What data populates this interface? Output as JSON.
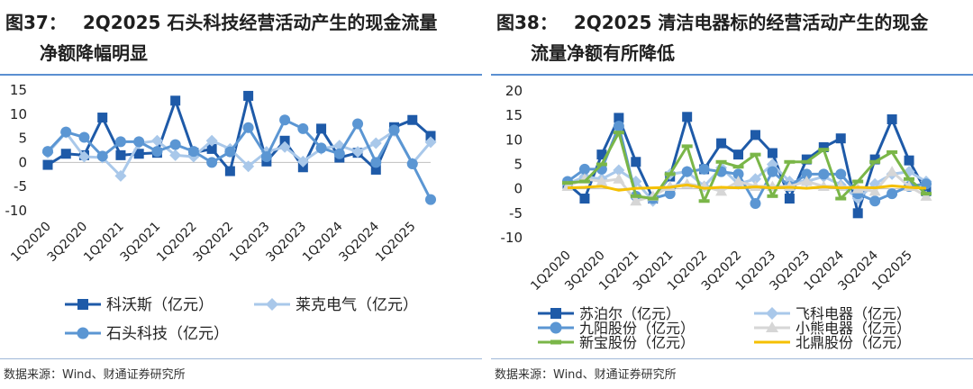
{
  "left": {
    "title_fig": "图37：",
    "title_line1": "2Q2025 石头科技经营活动产生的现金流量",
    "title_line2": "净额降幅明显",
    "source": "数据来源：Wind、财通证券研究所",
    "chart_data": {
      "type": "line",
      "categories": [
        "1Q2020",
        "2Q2020",
        "3Q2020",
        "4Q2020",
        "1Q2021",
        "2Q2021",
        "3Q2021",
        "4Q2021",
        "1Q2022",
        "2Q2022",
        "3Q2022",
        "4Q2022",
        "1Q2023",
        "2Q2023",
        "3Q2023",
        "4Q2023",
        "1Q2024",
        "2Q2024",
        "3Q2024",
        "4Q2024",
        "1Q2025",
        "2Q2025"
      ],
      "tick_labels": [
        "1Q2020",
        "3Q2020",
        "1Q2021",
        "3Q2021",
        "1Q2022",
        "3Q2022",
        "1Q2023",
        "3Q2023",
        "1Q2024",
        "3Q2024",
        "1Q2025"
      ],
      "y_ticks": [
        "15",
        "10",
        "5",
        "0",
        "-5",
        "-10"
      ],
      "ylim": [
        -10,
        15
      ],
      "series": [
        {
          "name": "科沃斯（亿元）",
          "color": "#1e5aa8",
          "marker": "square",
          "values": [
            -0.5,
            1.8,
            1.5,
            9.3,
            1.5,
            1.8,
            2.0,
            12.8,
            2.0,
            2.8,
            -1.8,
            13.8,
            0.2,
            4.5,
            -1.0,
            7.0,
            1.0,
            2.0,
            -1.5,
            7.3,
            8.8,
            5.5
          ]
        },
        {
          "name": "莱克电气（亿元）",
          "color": "#a9c8ea",
          "marker": "diamond",
          "values": [
            2.0,
            6.2,
            1.2,
            1.0,
            -2.8,
            4.0,
            4.5,
            1.5,
            1.2,
            4.5,
            2.8,
            -0.8,
            2.2,
            3.2,
            0.2,
            2.8,
            3.5,
            2.2,
            4.0,
            6.5,
            -0.2,
            4.2
          ]
        },
        {
          "name": "石头科技（亿元）",
          "color": "#5b96d3",
          "marker": "circle",
          "values": [
            2.3,
            6.3,
            5.2,
            1.3,
            4.3,
            4.3,
            2.3,
            3.7,
            2.3,
            0.0,
            2.2,
            7.2,
            1.2,
            8.8,
            7.0,
            3.0,
            1.8,
            8.0,
            0.0,
            6.7,
            -0.3,
            -7.7
          ]
        }
      ]
    }
  },
  "right": {
    "title_fig": "图38：",
    "title_line1": "2Q2025 清洁电器标的经营活动产生的现金",
    "title_line2": "流量净额有所降低",
    "source": "数据来源：Wind、财通证券研究所",
    "chart_data": {
      "type": "line",
      "categories": [
        "1Q2020",
        "2Q2020",
        "3Q2020",
        "4Q2020",
        "1Q2021",
        "2Q2021",
        "3Q2021",
        "4Q2021",
        "1Q2022",
        "2Q2022",
        "3Q2022",
        "4Q2022",
        "1Q2023",
        "2Q2023",
        "3Q2023",
        "4Q2023",
        "1Q2024",
        "2Q2024",
        "3Q2024",
        "4Q2024",
        "1Q2025",
        "2Q2025"
      ],
      "tick_labels": [
        "1Q2020",
        "3Q2020",
        "1Q2021",
        "3Q2021",
        "1Q2022",
        "3Q2022",
        "1Q2023",
        "3Q2023",
        "1Q2024",
        "3Q2024",
        "1Q2025"
      ],
      "y_ticks": [
        "20",
        "15",
        "10",
        "5",
        "0",
        "-5",
        "-10"
      ],
      "ylim": [
        -10,
        20
      ],
      "series": [
        {
          "name": "苏泊尔（亿元）",
          "color": "#1e5aa8",
          "marker": "square",
          "values": [
            1.0,
            -2.0,
            7.0,
            14.5,
            5.5,
            -2.0,
            2.5,
            14.7,
            4.0,
            9.3,
            7.0,
            11.0,
            7.3,
            -2.0,
            6.0,
            8.5,
            10.3,
            -5.0,
            6.0,
            14.2,
            5.8,
            -0.5
          ]
        },
        {
          "name": "飞科电器（亿元）",
          "color": "#a9c8ea",
          "marker": "diamond",
          "values": [
            1.0,
            2.5,
            2.0,
            3.8,
            1.5,
            -2.5,
            3.0,
            3.5,
            0.5,
            4.3,
            1.0,
            2.0,
            5.0,
            1.5,
            1.5,
            2.5,
            0.8,
            -2.0,
            1.0,
            3.0,
            3.5,
            1.5
          ]
        },
        {
          "name": "九阳股份（亿元）",
          "color": "#5b96d3",
          "marker": "circle",
          "values": [
            1.5,
            4.0,
            4.0,
            12.8,
            -1.5,
            -2.0,
            -1.0,
            3.5,
            4.0,
            3.5,
            3.0,
            -3.0,
            3.5,
            0.5,
            3.0,
            3.0,
            3.0,
            -1.0,
            -2.5,
            -1.0,
            0.5,
            1.0
          ]
        },
        {
          "name": "小熊电器（亿元）",
          "color": "#d6d6d6",
          "marker": "triangle",
          "values": [
            0.5,
            2.0,
            1.5,
            2.0,
            -2.5,
            -1.5,
            0.5,
            1.0,
            0.5,
            -0.5,
            1.5,
            0.5,
            0.5,
            0.5,
            1.5,
            0.5,
            0.5,
            0.0,
            -0.5,
            3.5,
            0.5,
            -1.5
          ]
        },
        {
          "name": "新宝股份（亿元）",
          "color": "#7ab648",
          "marker": "dash",
          "values": [
            1.2,
            1.5,
            5.0,
            11.5,
            -1.5,
            -2.0,
            3.0,
            8.7,
            -2.5,
            5.5,
            4.5,
            7.0,
            -1.5,
            5.5,
            5.5,
            8.0,
            -2.0,
            1.5,
            5.5,
            7.5,
            2.0,
            -1.0
          ]
        },
        {
          "name": "北鼎股份（亿元）",
          "color": "#f5c000",
          "marker": "none",
          "values": [
            0.2,
            0.3,
            0.5,
            -0.3,
            0.1,
            0.2,
            0.3,
            0.8,
            0.1,
            0.3,
            0.2,
            0.4,
            0.2,
            0.3,
            0.1,
            0.4,
            0.2,
            0.3,
            0.2,
            0.6,
            0.3,
            0.1
          ]
        }
      ]
    }
  }
}
